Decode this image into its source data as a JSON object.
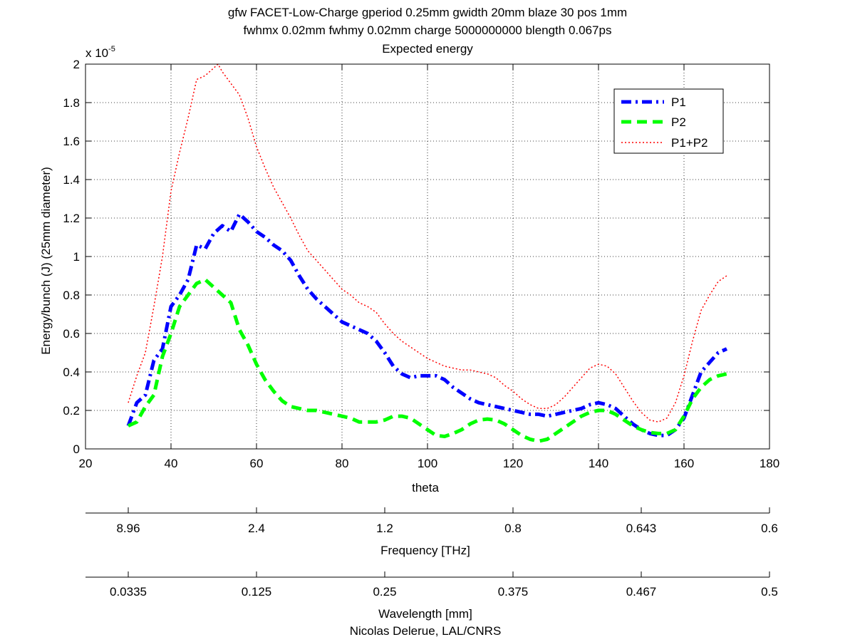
{
  "figure": {
    "title_lines": [
      "gfw FACET-Low-Charge gperiod 0.25mm gwidth 20mm blaze 30 pos 1mm",
      "fwhmx 0.02mm fwhmy 0.02mm charge 5000000000 blength 0.067ps",
      "Expected energy"
    ],
    "exponent_base": "x 10",
    "exponent_power": "-5",
    "frequency_axis": {
      "label": "Frequency [THz]",
      "ticks": [
        {
          "theta": 30,
          "label": "8.96"
        },
        {
          "theta": 60,
          "label": "2.4"
        },
        {
          "theta": 90,
          "label": "1.2"
        },
        {
          "theta": 120,
          "label": "0.8"
        },
        {
          "theta": 150,
          "label": "0.643"
        },
        {
          "theta": 180,
          "label": "0.6"
        }
      ]
    },
    "wavelength_axis": {
      "label": "Wavelength [mm]",
      "ticks": [
        {
          "theta": 30,
          "label": "0.0335"
        },
        {
          "theta": 60,
          "label": "0.125"
        },
        {
          "theta": 90,
          "label": "0.25"
        },
        {
          "theta": 120,
          "label": "0.375"
        },
        {
          "theta": 150,
          "label": "0.467"
        },
        {
          "theta": 180,
          "label": "0.5"
        }
      ]
    },
    "credit": "Nicolas Delerue, LAL/CNRS"
  },
  "chart_data": {
    "type": "line",
    "title": "Expected energy",
    "xlabel": "theta",
    "ylabel": "Energy/bunch (J) (25mm diameter)",
    "xlim": [
      20,
      180
    ],
    "ylim": [
      0,
      2
    ],
    "y_scale_factor": "x 10^-5",
    "x_ticks": [
      20,
      40,
      60,
      80,
      100,
      120,
      140,
      160,
      180
    ],
    "y_ticks": [
      0,
      0.2,
      0.4,
      0.6,
      0.8,
      1,
      1.2,
      1.4,
      1.6,
      1.8,
      2
    ],
    "x_tick_labels": [
      "20",
      "40",
      "60",
      "80",
      "100",
      "120",
      "140",
      "160",
      "180"
    ],
    "y_tick_labels": [
      "0",
      "0.2",
      "0.4",
      "0.6",
      "0.8",
      "1",
      "1.2",
      "1.4",
      "1.6",
      "1.8",
      "2"
    ],
    "grid": true,
    "legend_position": "top-right",
    "series": [
      {
        "name": "P1",
        "color": "#0000ff",
        "style": "dash-dot",
        "points": [
          [
            30,
            0.12
          ],
          [
            32,
            0.24
          ],
          [
            34,
            0.28
          ],
          [
            36,
            0.46
          ],
          [
            38,
            0.52
          ],
          [
            40,
            0.74
          ],
          [
            42,
            0.8
          ],
          [
            44,
            0.88
          ],
          [
            46,
            1.06
          ],
          [
            48,
            1.04
          ],
          [
            50,
            1.12
          ],
          [
            52,
            1.16
          ],
          [
            54,
            1.13
          ],
          [
            56,
            1.22
          ],
          [
            58,
            1.18
          ],
          [
            60,
            1.13
          ],
          [
            62,
            1.1
          ],
          [
            64,
            1.06
          ],
          [
            66,
            1.03
          ],
          [
            68,
            0.98
          ],
          [
            70,
            0.9
          ],
          [
            72,
            0.83
          ],
          [
            74,
            0.78
          ],
          [
            76,
            0.74
          ],
          [
            78,
            0.7
          ],
          [
            80,
            0.66
          ],
          [
            82,
            0.64
          ],
          [
            84,
            0.62
          ],
          [
            86,
            0.6
          ],
          [
            88,
            0.56
          ],
          [
            90,
            0.5
          ],
          [
            92,
            0.43
          ],
          [
            94,
            0.39
          ],
          [
            96,
            0.37
          ],
          [
            98,
            0.38
          ],
          [
            100,
            0.38
          ],
          [
            102,
            0.38
          ],
          [
            104,
            0.36
          ],
          [
            106,
            0.32
          ],
          [
            108,
            0.29
          ],
          [
            110,
            0.26
          ],
          [
            112,
            0.24
          ],
          [
            114,
            0.23
          ],
          [
            116,
            0.22
          ],
          [
            118,
            0.21
          ],
          [
            120,
            0.2
          ],
          [
            122,
            0.19
          ],
          [
            124,
            0.18
          ],
          [
            126,
            0.18
          ],
          [
            128,
            0.17
          ],
          [
            130,
            0.18
          ],
          [
            132,
            0.19
          ],
          [
            134,
            0.2
          ],
          [
            136,
            0.21
          ],
          [
            138,
            0.23
          ],
          [
            140,
            0.24
          ],
          [
            142,
            0.23
          ],
          [
            144,
            0.21
          ],
          [
            146,
            0.17
          ],
          [
            148,
            0.13
          ],
          [
            150,
            0.1
          ],
          [
            152,
            0.08
          ],
          [
            154,
            0.07
          ],
          [
            156,
            0.07
          ],
          [
            158,
            0.1
          ],
          [
            160,
            0.16
          ],
          [
            162,
            0.28
          ],
          [
            164,
            0.4
          ],
          [
            166,
            0.45
          ],
          [
            168,
            0.5
          ],
          [
            170,
            0.52
          ]
        ]
      },
      {
        "name": "P2",
        "color": "#00ff00",
        "style": "dashed",
        "points": [
          [
            30,
            0.12
          ],
          [
            32,
            0.14
          ],
          [
            34,
            0.22
          ],
          [
            36,
            0.28
          ],
          [
            38,
            0.48
          ],
          [
            40,
            0.6
          ],
          [
            42,
            0.74
          ],
          [
            44,
            0.8
          ],
          [
            46,
            0.86
          ],
          [
            48,
            0.88
          ],
          [
            50,
            0.84
          ],
          [
            52,
            0.8
          ],
          [
            54,
            0.76
          ],
          [
            56,
            0.62
          ],
          [
            58,
            0.54
          ],
          [
            60,
            0.44
          ],
          [
            62,
            0.36
          ],
          [
            64,
            0.3
          ],
          [
            66,
            0.25
          ],
          [
            68,
            0.22
          ],
          [
            70,
            0.21
          ],
          [
            72,
            0.2
          ],
          [
            74,
            0.2
          ],
          [
            76,
            0.19
          ],
          [
            78,
            0.18
          ],
          [
            80,
            0.17
          ],
          [
            82,
            0.16
          ],
          [
            84,
            0.14
          ],
          [
            86,
            0.14
          ],
          [
            88,
            0.14
          ],
          [
            90,
            0.15
          ],
          [
            92,
            0.17
          ],
          [
            94,
            0.17
          ],
          [
            96,
            0.16
          ],
          [
            98,
            0.13
          ],
          [
            100,
            0.1
          ],
          [
            102,
            0.07
          ],
          [
            104,
            0.065
          ],
          [
            106,
            0.08
          ],
          [
            108,
            0.1
          ],
          [
            110,
            0.13
          ],
          [
            112,
            0.15
          ],
          [
            114,
            0.155
          ],
          [
            116,
            0.15
          ],
          [
            118,
            0.13
          ],
          [
            120,
            0.1
          ],
          [
            122,
            0.07
          ],
          [
            124,
            0.05
          ],
          [
            126,
            0.04
          ],
          [
            128,
            0.05
          ],
          [
            130,
            0.08
          ],
          [
            132,
            0.11
          ],
          [
            134,
            0.14
          ],
          [
            136,
            0.17
          ],
          [
            138,
            0.19
          ],
          [
            140,
            0.2
          ],
          [
            142,
            0.2
          ],
          [
            144,
            0.18
          ],
          [
            146,
            0.15
          ],
          [
            148,
            0.12
          ],
          [
            150,
            0.1
          ],
          [
            152,
            0.085
          ],
          [
            154,
            0.08
          ],
          [
            156,
            0.08
          ],
          [
            158,
            0.1
          ],
          [
            160,
            0.17
          ],
          [
            162,
            0.26
          ],
          [
            164,
            0.32
          ],
          [
            166,
            0.36
          ],
          [
            168,
            0.38
          ],
          [
            170,
            0.39
          ]
        ]
      },
      {
        "name": "P1+P2",
        "color": "#ff0000",
        "style": "dotted",
        "points": [
          [
            30,
            0.24
          ],
          [
            32,
            0.38
          ],
          [
            34,
            0.5
          ],
          [
            36,
            0.74
          ],
          [
            38,
            1.0
          ],
          [
            40,
            1.34
          ],
          [
            42,
            1.54
          ],
          [
            44,
            1.72
          ],
          [
            46,
            1.92
          ],
          [
            48,
            1.94
          ],
          [
            50,
            1.98
          ],
          [
            51,
            2.0
          ],
          [
            52,
            1.96
          ],
          [
            54,
            1.9
          ],
          [
            56,
            1.84
          ],
          [
            58,
            1.72
          ],
          [
            60,
            1.57
          ],
          [
            62,
            1.46
          ],
          [
            64,
            1.36
          ],
          [
            66,
            1.28
          ],
          [
            68,
            1.2
          ],
          [
            70,
            1.11
          ],
          [
            72,
            1.03
          ],
          [
            74,
            0.98
          ],
          [
            76,
            0.93
          ],
          [
            78,
            0.88
          ],
          [
            80,
            0.83
          ],
          [
            82,
            0.8
          ],
          [
            84,
            0.76
          ],
          [
            86,
            0.74
          ],
          [
            88,
            0.71
          ],
          [
            90,
            0.65
          ],
          [
            92,
            0.6
          ],
          [
            94,
            0.56
          ],
          [
            96,
            0.53
          ],
          [
            98,
            0.5
          ],
          [
            100,
            0.47
          ],
          [
            102,
            0.45
          ],
          [
            104,
            0.43
          ],
          [
            106,
            0.42
          ],
          [
            108,
            0.41
          ],
          [
            110,
            0.41
          ],
          [
            112,
            0.4
          ],
          [
            114,
            0.39
          ],
          [
            116,
            0.37
          ],
          [
            118,
            0.33
          ],
          [
            120,
            0.3
          ],
          [
            122,
            0.26
          ],
          [
            124,
            0.23
          ],
          [
            126,
            0.21
          ],
          [
            128,
            0.21
          ],
          [
            130,
            0.23
          ],
          [
            132,
            0.27
          ],
          [
            134,
            0.32
          ],
          [
            136,
            0.37
          ],
          [
            138,
            0.42
          ],
          [
            140,
            0.44
          ],
          [
            142,
            0.43
          ],
          [
            144,
            0.39
          ],
          [
            146,
            0.32
          ],
          [
            148,
            0.25
          ],
          [
            150,
            0.19
          ],
          [
            152,
            0.15
          ],
          [
            154,
            0.14
          ],
          [
            156,
            0.16
          ],
          [
            158,
            0.24
          ],
          [
            160,
            0.38
          ],
          [
            162,
            0.56
          ],
          [
            164,
            0.72
          ],
          [
            166,
            0.8
          ],
          [
            168,
            0.87
          ],
          [
            170,
            0.9
          ]
        ]
      }
    ]
  }
}
